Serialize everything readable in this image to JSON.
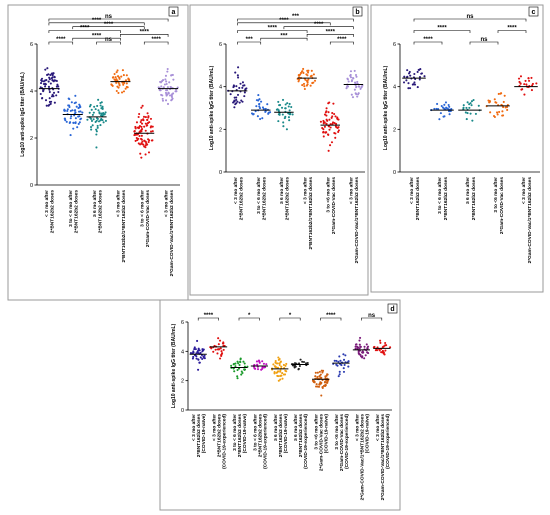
{
  "chart_data": [
    {
      "panel": "a",
      "type": "scatter",
      "ylabel": "Log10 anti-spike IgG titer (BAU/mL)",
      "ylim": [
        0,
        6
      ],
      "yticks": [
        "0",
        "2",
        "4",
        "6"
      ],
      "groups": [
        {
          "label": "< 3 mo after 2*BNT162b2 doses",
          "color": "#2a1a7a",
          "median": 4.1,
          "spread": 0.8,
          "n": 70
        },
        {
          "label": "3 to < 6 mo after 2*BNT162b2 doses",
          "color": "#2a66d6",
          "median": 3.0,
          "spread": 0.6,
          "n": 55
        },
        {
          "label": "≥ 6 mo after 2*BNT162b2 doses",
          "color": "#1a8a8a",
          "median": 2.9,
          "spread": 0.7,
          "n": 55
        },
        {
          "label": "< 3 mo after 2*BNT162b2/1*BNT162b2 doses",
          "color": "#f06a10",
          "median": 4.4,
          "spread": 0.4,
          "n": 45
        },
        {
          "label": "3 to < 6 mo after 2*Gam-COVID-Vac doses",
          "color": "#e01010",
          "median": 2.2,
          "spread": 0.9,
          "n": 85
        },
        {
          "label": "< 3 mo after 2*Gam-COVID-Vac/1*BNT162b2 doses",
          "color": "#a890d8",
          "median": 4.1,
          "spread": 0.6,
          "n": 55
        }
      ],
      "comparisons": [
        {
          "from": 0,
          "to": 5,
          "label": "ns"
        },
        {
          "from": 0,
          "to": 4,
          "label": "****"
        },
        {
          "from": 0,
          "to": 3,
          "label": "****"
        },
        {
          "from": 0,
          "to": 1,
          "label": "****"
        },
        {
          "from": 1,
          "to": 4,
          "label": "****"
        },
        {
          "from": 1,
          "to": 3,
          "label": "****"
        },
        {
          "from": 3,
          "to": 5,
          "label": "****"
        },
        {
          "from": 4,
          "to": 5,
          "label": "****"
        },
        {
          "from": 2,
          "to": 3,
          "label": "ns"
        }
      ]
    },
    {
      "panel": "b",
      "type": "scatter",
      "ylabel": "Log10 anti-spike IgG titer (BAU/mL)",
      "ylim": [
        0,
        6
      ],
      "yticks": [
        "0",
        "2",
        "4",
        "6"
      ],
      "groups": [
        {
          "label": "< 3 mo after 2*BNT162b2 doses",
          "color": "#2a1a7a",
          "median": 3.8,
          "spread": 0.7,
          "n": 40
        },
        {
          "label": "3 to < 6 mo after 2*BNT162b2 doses",
          "color": "#2a66d6",
          "median": 2.9,
          "spread": 0.5,
          "n": 30
        },
        {
          "label": "≥ 6 mo after 2*BNT162b2 doses",
          "color": "#1a8a8a",
          "median": 2.8,
          "spread": 0.6,
          "n": 35
        },
        {
          "label": "< 3 mo after 2*BNT162b2/1*BNT162b2 doses",
          "color": "#f06a10",
          "median": 4.4,
          "spread": 0.4,
          "n": 40
        },
        {
          "label": "3 to <6 mo after 2*Gam-COVID-Vac doses",
          "color": "#e01010",
          "median": 2.2,
          "spread": 0.8,
          "n": 60
        },
        {
          "label": "< 3 mo after 2*Gam-COVID-Vac/1*BNT162b2 doses",
          "color": "#a890d8",
          "median": 4.1,
          "spread": 0.5,
          "n": 40
        }
      ],
      "comparisons": [
        {
          "from": 0,
          "to": 5,
          "label": "***"
        },
        {
          "from": 0,
          "to": 4,
          "label": "****"
        },
        {
          "from": 0,
          "to": 3,
          "label": "****"
        },
        {
          "from": 0,
          "to": 1,
          "label": "***"
        },
        {
          "from": 1,
          "to": 3,
          "label": "***"
        },
        {
          "from": 2,
          "to": 5,
          "label": "****"
        },
        {
          "from": 3,
          "to": 5,
          "label": "****"
        },
        {
          "from": 4,
          "to": 5,
          "label": "****"
        }
      ]
    },
    {
      "panel": "c",
      "type": "scatter",
      "ylabel": "Log10 anti-spike IgG titer (BAU/mL)",
      "ylim": [
        0,
        6
      ],
      "yticks": [
        "0",
        "2",
        "4",
        "6"
      ],
      "groups": [
        {
          "label": "< 3 mo after 2*BNT162b2 doses",
          "color": "#2a1a7a",
          "median": 4.4,
          "spread": 0.5,
          "n": 30
        },
        {
          "label": "3 to < 6 mo after 2*BNT162b2 doses",
          "color": "#2a66d6",
          "median": 2.9,
          "spread": 0.3,
          "n": 30
        },
        {
          "label": "≥ 6 mo after 2*BNT162b2 doses",
          "color": "#1a8a8a",
          "median": 2.9,
          "spread": 0.4,
          "n": 20
        },
        {
          "label": "3 to <6 mo after 2*Gam-COVID-Vac doses",
          "color": "#f06a10",
          "median": 3.1,
          "spread": 0.6,
          "n": 30
        },
        {
          "label": "< 3 mo after 2*Gam-COVID-Vac/1*BNT162b2 doses",
          "color": "#e01010",
          "median": 4.0,
          "spread": 0.5,
          "n": 25
        }
      ],
      "comparisons": [
        {
          "from": 0,
          "to": 4,
          "label": "ns"
        },
        {
          "from": 0,
          "to": 2,
          "label": "****"
        },
        {
          "from": 0,
          "to": 1,
          "label": "****"
        },
        {
          "from": 2,
          "to": 3,
          "label": "ns"
        },
        {
          "from": 3,
          "to": 4,
          "label": "****"
        }
      ]
    },
    {
      "panel": "d",
      "type": "scatter",
      "ylabel": "Log10 anti-spike IgG titer (BAU/mL)",
      "ylim": [
        0,
        6
      ],
      "yticks": [
        "0",
        "2",
        "4",
        "6"
      ],
      "groups": [
        {
          "label": "< 3 mo after 2*BNT162b2 doses (COVID-19-naïve)",
          "color": "#2a1a9a",
          "median": 3.8,
          "spread": 0.6,
          "n": 40
        },
        {
          "label": "< 3 mo after 2*BNT162b2 doses (COVID-19-experienced)",
          "color": "#e01010",
          "median": 4.3,
          "spread": 0.5,
          "n": 30
        },
        {
          "label": "3 to < 6 mo after 2*BNT162b2 doses (COVID-19-naïve)",
          "color": "#1a9a2a",
          "median": 2.9,
          "spread": 0.5,
          "n": 30
        },
        {
          "label": "3 to < 6 mo after 2*BNT162b2 doses (COVID-19-experienced)",
          "color": "#c010c0",
          "median": 3.0,
          "spread": 0.3,
          "n": 20
        },
        {
          "label": "≥ 6 mo after 2*BNT162b2 doses (COVID-19-naïve)",
          "color": "#f0a010",
          "median": 2.8,
          "spread": 0.6,
          "n": 45
        },
        {
          "label": "≥ 6 mo after 2*BNT162b2 doses (COVID-19-experienced)",
          "color": "#222222",
          "median": 3.1,
          "spread": 0.4,
          "n": 20
        },
        {
          "label": "3 to <6 mo after 2*Gam-COVID-Vac doses (COVID-19-naïve)",
          "color": "#d06010",
          "median": 2.1,
          "spread": 0.7,
          "n": 60
        },
        {
          "label": "3 to <6 mo after 2*Gam-COVID-Vac doses (COVID-19-experienced)",
          "color": "#2a3ab0",
          "median": 3.2,
          "spread": 0.6,
          "n": 25
        },
        {
          "label": "< 3 mo after 2*Gam-COVID-Vac/1*BNT162b2 doses (COVID-19-naïve)",
          "color": "#7a1a7a",
          "median": 4.1,
          "spread": 0.5,
          "n": 40
        },
        {
          "label": "< 3 mo after 2*Gam-COVID-Vac/1*BNT162b2 doses (COVID-19-experienced)",
          "color": "#e01010",
          "median": 4.2,
          "spread": 0.4,
          "n": 25
        }
      ],
      "comparisons": [
        {
          "from": 0,
          "to": 1,
          "label": "****"
        },
        {
          "from": 2,
          "to": 3,
          "label": "*"
        },
        {
          "from": 4,
          "to": 5,
          "label": "*"
        },
        {
          "from": 6,
          "to": 7,
          "label": "****"
        },
        {
          "from": 8,
          "to": 9,
          "label": "ns"
        }
      ]
    }
  ]
}
